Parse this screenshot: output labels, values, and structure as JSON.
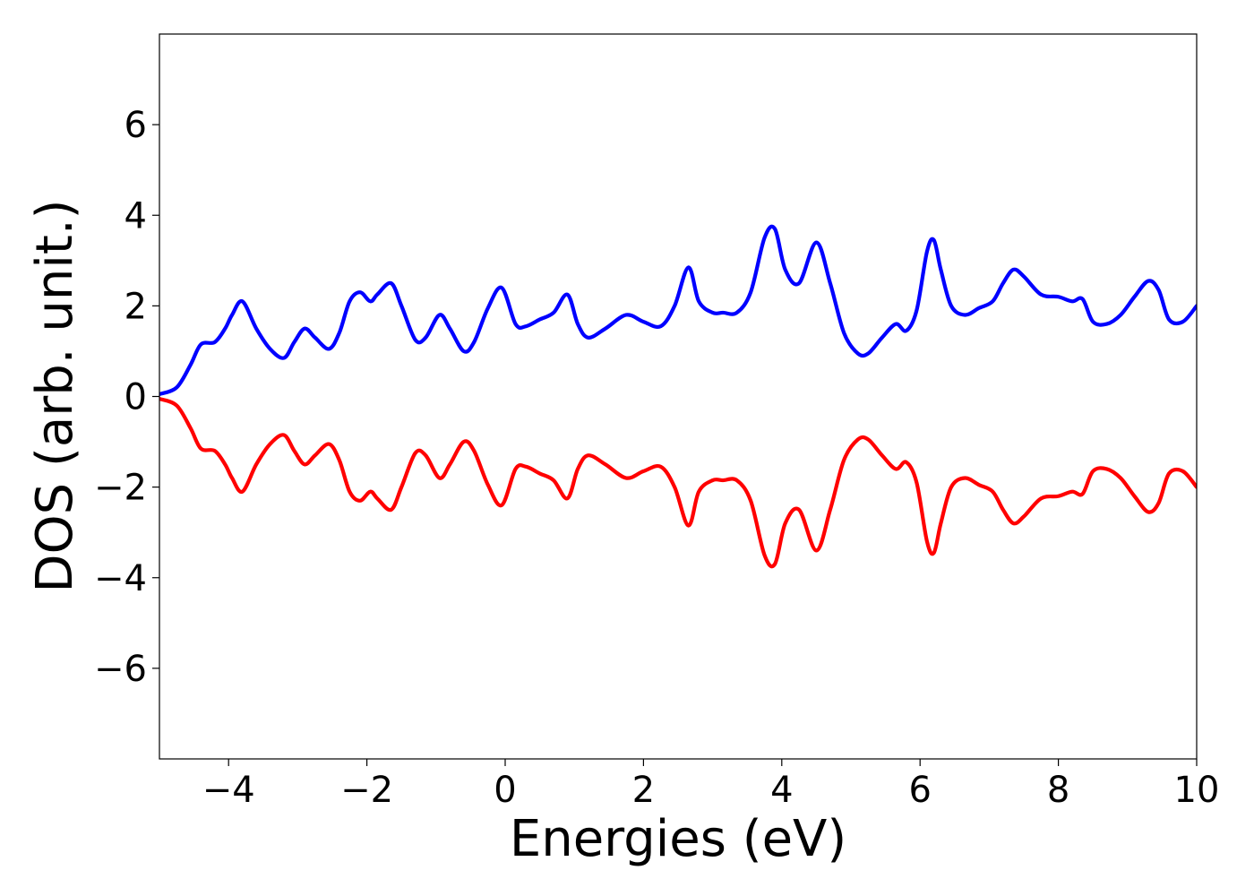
{
  "chart_data": {
    "type": "line",
    "xlabel": "Energies (eV)",
    "ylabel": "DOS (arb. unit.)",
    "xlim": [
      -5,
      10
    ],
    "ylim": [
      -8,
      8
    ],
    "x_ticks": [
      -4,
      -2,
      0,
      2,
      4,
      6,
      8,
      10
    ],
    "x_tick_labels": [
      "−4",
      "−2",
      "0",
      "2",
      "4",
      "6",
      "8",
      "10"
    ],
    "y_ticks": [
      -6,
      -4,
      -2,
      0,
      2,
      4,
      6
    ],
    "y_tick_labels": [
      "−6",
      "−4",
      "−2",
      "0",
      "2",
      "4",
      "6"
    ],
    "grid": false,
    "series": [
      {
        "color": "#0000ff",
        "x": [
          -5.0,
          -4.75,
          -4.55,
          -4.4,
          -4.2,
          -4.05,
          -3.95,
          -3.8,
          -3.6,
          -3.4,
          -3.2,
          -3.05,
          -2.9,
          -2.75,
          -2.55,
          -2.4,
          -2.25,
          -2.1,
          -1.95,
          -1.85,
          -1.65,
          -1.5,
          -1.3,
          -1.15,
          -0.95,
          -0.8,
          -0.6,
          -0.45,
          -0.25,
          -0.05,
          0.15,
          0.3,
          0.5,
          0.7,
          0.9,
          1.05,
          1.2,
          1.45,
          1.75,
          2.0,
          2.25,
          2.45,
          2.65,
          2.8,
          3.0,
          3.15,
          3.35,
          3.55,
          3.75,
          3.9,
          4.05,
          4.25,
          4.5,
          4.7,
          4.9,
          5.1,
          5.25,
          5.45,
          5.65,
          5.8,
          5.95,
          6.1,
          6.2,
          6.3,
          6.45,
          6.65,
          6.85,
          7.05,
          7.2,
          7.35,
          7.5,
          7.75,
          8.0,
          8.2,
          8.35,
          8.5,
          8.7,
          8.9,
          9.1,
          9.3,
          9.45,
          9.6,
          9.8,
          10.0
        ],
        "values": [
          0.05,
          0.2,
          0.7,
          1.15,
          1.2,
          1.5,
          1.8,
          2.1,
          1.5,
          1.05,
          0.85,
          1.2,
          1.5,
          1.3,
          1.05,
          1.4,
          2.1,
          2.3,
          2.1,
          2.25,
          2.5,
          2.0,
          1.25,
          1.3,
          1.8,
          1.5,
          1.0,
          1.2,
          1.95,
          2.4,
          1.6,
          1.55,
          1.7,
          1.85,
          2.25,
          1.6,
          1.3,
          1.5,
          1.8,
          1.65,
          1.55,
          2.0,
          2.85,
          2.1,
          1.85,
          1.85,
          1.85,
          2.3,
          3.5,
          3.7,
          2.8,
          2.5,
          3.4,
          2.5,
          1.4,
          0.95,
          0.95,
          1.3,
          1.6,
          1.45,
          1.9,
          3.2,
          3.45,
          2.8,
          2.0,
          1.8,
          1.95,
          2.1,
          2.5,
          2.8,
          2.65,
          2.25,
          2.2,
          2.1,
          2.15,
          1.65,
          1.6,
          1.8,
          2.2,
          2.55,
          2.35,
          1.7,
          1.65,
          2.0
        ]
      },
      {
        "color": "#ff0000",
        "x": [
          -5.0,
          -4.75,
          -4.55,
          -4.4,
          -4.2,
          -4.05,
          -3.95,
          -3.8,
          -3.6,
          -3.4,
          -3.2,
          -3.05,
          -2.9,
          -2.75,
          -2.55,
          -2.4,
          -2.25,
          -2.1,
          -1.95,
          -1.85,
          -1.65,
          -1.5,
          -1.3,
          -1.15,
          -0.95,
          -0.8,
          -0.6,
          -0.45,
          -0.25,
          -0.05,
          0.15,
          0.3,
          0.5,
          0.7,
          0.9,
          1.05,
          1.2,
          1.45,
          1.75,
          2.0,
          2.25,
          2.45,
          2.65,
          2.8,
          3.0,
          3.15,
          3.35,
          3.55,
          3.75,
          3.9,
          4.05,
          4.25,
          4.5,
          4.7,
          4.9,
          5.1,
          5.25,
          5.45,
          5.65,
          5.8,
          5.95,
          6.1,
          6.2,
          6.3,
          6.45,
          6.65,
          6.85,
          7.05,
          7.2,
          7.35,
          7.5,
          7.75,
          8.0,
          8.2,
          8.35,
          8.5,
          8.7,
          8.9,
          9.1,
          9.3,
          9.45,
          9.6,
          9.8,
          10.0
        ],
        "values": [
          -0.05,
          -0.2,
          -0.7,
          -1.15,
          -1.2,
          -1.5,
          -1.8,
          -2.1,
          -1.5,
          -1.05,
          -0.85,
          -1.2,
          -1.5,
          -1.3,
          -1.05,
          -1.4,
          -2.1,
          -2.3,
          -2.1,
          -2.25,
          -2.5,
          -2.0,
          -1.25,
          -1.3,
          -1.8,
          -1.5,
          -1.0,
          -1.2,
          -1.95,
          -2.4,
          -1.6,
          -1.55,
          -1.7,
          -1.85,
          -2.25,
          -1.6,
          -1.3,
          -1.5,
          -1.8,
          -1.65,
          -1.55,
          -2.0,
          -2.85,
          -2.1,
          -1.85,
          -1.85,
          -1.85,
          -2.3,
          -3.5,
          -3.7,
          -2.8,
          -2.5,
          -3.4,
          -2.5,
          -1.4,
          -0.95,
          -0.95,
          -1.3,
          -1.6,
          -1.45,
          -1.9,
          -3.2,
          -3.45,
          -2.8,
          -2.0,
          -1.8,
          -1.95,
          -2.1,
          -2.5,
          -2.8,
          -2.65,
          -2.25,
          -2.2,
          -2.1,
          -2.15,
          -1.65,
          -1.6,
          -1.8,
          -2.2,
          -2.55,
          -2.35,
          -1.7,
          -1.65,
          -2.0
        ]
      }
    ]
  }
}
